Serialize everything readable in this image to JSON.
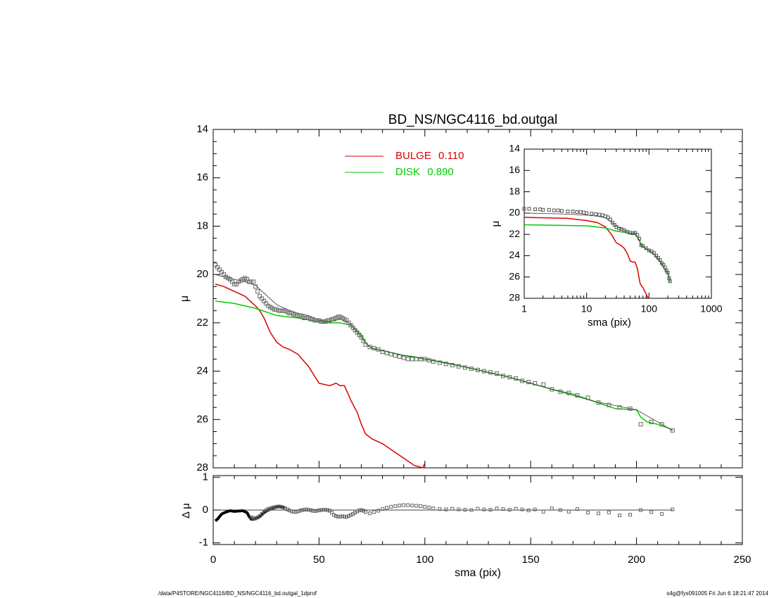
{
  "chart_data": [
    {
      "id": "main",
      "type": "line",
      "title": "BD_NS/NGC4116_bd.outgal",
      "xlabel": "",
      "ylabel": "μ",
      "xlim": [
        0,
        250
      ],
      "ylim": [
        28,
        14
      ],
      "yticks": [
        "14",
        "16",
        "18",
        "20",
        "22",
        "24",
        "26",
        "28"
      ],
      "legend": {
        "placement": "top",
        "entries": [
          {
            "label": "BULGE",
            "value": "0.110",
            "color": "#dd0000"
          },
          {
            "label": "DISK",
            "value": "0.890",
            "color": "#00cc00"
          }
        ]
      },
      "series": [
        {
          "name": "BULGE",
          "color": "#dd0000",
          "style": "line",
          "x": [
            1,
            5,
            10,
            15,
            20,
            22,
            24,
            25,
            27,
            30,
            33,
            36,
            40,
            45,
            50,
            55,
            58,
            60,
            62,
            65,
            68,
            70,
            72,
            75,
            80,
            85,
            90,
            95,
            99,
            100,
            101
          ],
          "y": [
            20.4,
            20.5,
            20.7,
            20.9,
            21.3,
            21.5,
            21.8,
            22.0,
            22.4,
            22.8,
            23.0,
            23.1,
            23.3,
            23.8,
            24.5,
            24.6,
            24.5,
            24.6,
            24.6,
            25.2,
            25.7,
            26.2,
            26.6,
            26.8,
            27.0,
            27.3,
            27.6,
            27.9,
            28.0,
            27.8,
            28.1
          ]
        },
        {
          "name": "DISK",
          "color": "#00cc00",
          "style": "line",
          "x": [
            1,
            10,
            20,
            30,
            40,
            50,
            55,
            60,
            65,
            70,
            72,
            75,
            80,
            90,
            95,
            100,
            110,
            120,
            130,
            140,
            150,
            160,
            170,
            180,
            190,
            200,
            202,
            205,
            210,
            215,
            217
          ],
          "y": [
            21.1,
            21.2,
            21.4,
            21.7,
            21.8,
            21.95,
            22.0,
            22.0,
            22.1,
            22.5,
            22.85,
            23.05,
            23.15,
            23.35,
            23.4,
            23.5,
            23.65,
            23.85,
            24.05,
            24.25,
            24.5,
            24.75,
            24.95,
            25.25,
            25.55,
            25.6,
            25.9,
            26.1,
            26.2,
            26.35,
            26.45
          ]
        },
        {
          "name": "",
          "color": "#333333",
          "style": "line",
          "x": [
            1,
            5,
            10,
            15,
            20,
            25,
            30,
            35,
            40,
            45,
            50,
            55,
            60,
            63,
            65,
            68,
            70,
            72,
            75,
            80,
            90,
            100,
            120,
            140,
            160,
            180,
            200,
            217
          ],
          "y": [
            20.0,
            20.1,
            20.2,
            20.3,
            20.45,
            20.85,
            21.25,
            21.45,
            21.6,
            21.7,
            21.9,
            21.95,
            21.85,
            21.95,
            22.05,
            22.4,
            22.6,
            22.85,
            23.05,
            23.15,
            23.35,
            23.5,
            23.85,
            24.25,
            24.75,
            25.25,
            25.6,
            26.45
          ]
        },
        {
          "name": "",
          "color": "#666666",
          "style": "markers",
          "x": [
            1,
            2,
            3,
            4,
            5,
            6,
            7,
            8,
            9,
            10,
            11,
            12,
            13,
            14,
            15,
            16,
            17,
            18,
            19,
            20,
            21,
            22,
            23,
            24,
            25,
            26,
            27,
            28,
            29,
            30,
            31,
            32,
            33,
            34,
            35,
            36,
            37,
            38,
            39,
            40,
            41,
            42,
            43,
            44,
            45,
            46,
            47,
            48,
            49,
            50,
            51,
            52,
            53,
            54,
            55,
            56,
            57,
            58,
            59,
            60,
            61,
            62,
            63,
            64,
            65,
            66,
            67,
            68,
            69,
            70,
            71,
            72,
            74,
            76,
            78,
            80,
            82,
            84,
            86,
            88,
            90,
            92,
            94,
            96,
            98,
            100,
            102,
            104,
            107,
            110,
            113,
            116,
            119,
            122,
            125,
            128,
            131,
            134,
            137,
            140,
            143,
            146,
            149,
            152,
            156,
            160,
            164,
            168,
            172,
            177,
            182,
            187,
            192,
            197,
            202,
            207,
            212,
            217
          ],
          "y": [
            19.6,
            19.7,
            19.8,
            19.9,
            20.0,
            20.1,
            20.15,
            20.2,
            20.3,
            20.4,
            20.4,
            20.3,
            20.25,
            20.2,
            20.15,
            20.2,
            20.3,
            20.3,
            20.3,
            20.5,
            20.7,
            20.9,
            21.0,
            21.1,
            21.2,
            21.3,
            21.35,
            21.4,
            21.45,
            21.45,
            21.5,
            21.5,
            21.5,
            21.5,
            21.55,
            21.6,
            21.6,
            21.65,
            21.7,
            21.7,
            21.7,
            21.75,
            21.8,
            21.8,
            21.8,
            21.85,
            21.85,
            21.9,
            21.9,
            21.9,
            21.95,
            21.95,
            21.95,
            21.9,
            21.9,
            21.85,
            21.85,
            21.8,
            21.75,
            21.75,
            21.8,
            21.85,
            21.9,
            22.0,
            22.1,
            22.2,
            22.3,
            22.4,
            22.5,
            22.6,
            22.75,
            22.9,
            23.0,
            23.05,
            23.1,
            23.2,
            23.25,
            23.3,
            23.35,
            23.4,
            23.45,
            23.5,
            23.5,
            23.5,
            23.5,
            23.5,
            23.55,
            23.6,
            23.65,
            23.7,
            23.75,
            23.8,
            23.85,
            23.9,
            23.95,
            24.0,
            24.05,
            24.1,
            24.2,
            24.25,
            24.3,
            24.4,
            24.45,
            24.5,
            24.55,
            24.75,
            24.85,
            24.9,
            25.0,
            25.1,
            25.3,
            25.4,
            25.5,
            25.55,
            26.2,
            26.1,
            26.2,
            26.45
          ]
        }
      ]
    },
    {
      "id": "residual",
      "type": "scatter",
      "xlabel": "sma (pix)",
      "ylabel": "Δ μ",
      "xlim": [
        0,
        250
      ],
      "ylim": [
        -1.05,
        1.05
      ],
      "xticks": [
        "0",
        "50",
        "100",
        "150",
        "200",
        "250"
      ],
      "yticks": [
        "1",
        "0",
        "-1"
      ],
      "series": [
        {
          "name": "",
          "color": "#000000",
          "style": "line-thick",
          "x": [
            1,
            2,
            3,
            4,
            6,
            8,
            10,
            12,
            14,
            16,
            17,
            18,
            20,
            22,
            24,
            26,
            28,
            30,
            32,
            34
          ],
          "y": [
            -0.33,
            -0.28,
            -0.2,
            -0.12,
            -0.06,
            -0.02,
            -0.04,
            -0.03,
            -0.02,
            -0.08,
            -0.2,
            -0.28,
            -0.27,
            -0.2,
            -0.08,
            0.0,
            0.05,
            0.09,
            0.11,
            0.07
          ]
        },
        {
          "name": "",
          "color": "#666666",
          "style": "markers",
          "x": [
            18,
            19,
            20,
            21,
            22,
            23,
            24,
            25,
            26,
            27,
            28,
            29,
            30,
            31,
            32,
            33,
            34,
            35,
            36,
            37,
            38,
            39,
            40,
            41,
            42,
            43,
            44,
            45,
            46,
            47,
            48,
            49,
            50,
            51,
            52,
            53,
            54,
            55,
            56,
            57,
            58,
            59,
            60,
            61,
            62,
            63,
            64,
            65,
            66,
            67,
            68,
            69,
            70,
            71,
            72,
            74,
            76,
            78,
            80,
            82,
            84,
            86,
            88,
            90,
            92,
            94,
            96,
            98,
            100,
            102,
            104,
            107,
            110,
            113,
            116,
            119,
            122,
            125,
            128,
            131,
            134,
            137,
            140,
            143,
            146,
            149,
            152,
            156,
            160,
            164,
            168,
            172,
            177,
            182,
            187,
            192,
            197,
            202,
            207,
            212,
            217
          ],
          "y": [
            -0.22,
            -0.24,
            -0.25,
            -0.22,
            -0.18,
            -0.12,
            -0.06,
            0.0,
            0.03,
            0.05,
            0.07,
            0.09,
            0.1,
            0.11,
            0.1,
            0.08,
            0.05,
            0.02,
            -0.01,
            -0.04,
            -0.05,
            -0.06,
            -0.04,
            -0.02,
            0.0,
            0.01,
            0.02,
            0.01,
            0.0,
            -0.02,
            -0.03,
            -0.02,
            -0.01,
            0.0,
            0.01,
            0.01,
            0.0,
            -0.02,
            -0.08,
            -0.15,
            -0.18,
            -0.2,
            -0.2,
            -0.19,
            -0.2,
            -0.21,
            -0.18,
            -0.15,
            -0.12,
            -0.08,
            -0.04,
            -0.01,
            0.0,
            -0.02,
            -0.06,
            -0.1,
            -0.06,
            -0.02,
            0.03,
            0.07,
            0.1,
            0.12,
            0.14,
            0.15,
            0.15,
            0.14,
            0.13,
            0.12,
            0.1,
            0.08,
            0.05,
            0.03,
            0.02,
            0.04,
            0.02,
            0.01,
            0.0,
            0.04,
            0.02,
            0.01,
            0.05,
            0.03,
            0.01,
            0.04,
            0.02,
            -0.01,
            0.02,
            -0.05,
            0.05,
            0.0,
            -0.05,
            0.03,
            -0.08,
            -0.1,
            -0.07,
            -0.16,
            -0.14,
            0.0,
            -0.06,
            -0.12,
            0.02
          ]
        }
      ]
    },
    {
      "id": "inset",
      "type": "line",
      "xlabel": "sma (pix)",
      "ylabel": "μ",
      "xscale": "log",
      "xlim": [
        1,
        1000
      ],
      "ylim": [
        28,
        14
      ],
      "xticks": [
        "1",
        "10",
        "100",
        "1000"
      ],
      "yticks": [
        "14",
        "16",
        "18",
        "20",
        "22",
        "24",
        "26",
        "28"
      ],
      "series": [
        {
          "name": "BULGE",
          "color": "#dd0000",
          "style": "line",
          "x": [
            1,
            5,
            10,
            15,
            20,
            25,
            30,
            35,
            40,
            45,
            50,
            55,
            60,
            65,
            70,
            72,
            75,
            80,
            85,
            90,
            95,
            99,
            100
          ],
          "y": [
            20.4,
            20.5,
            20.7,
            20.9,
            21.3,
            22.0,
            22.8,
            23.0,
            23.3,
            23.8,
            24.5,
            24.6,
            24.6,
            25.2,
            26.2,
            26.6,
            26.8,
            27.0,
            27.3,
            27.6,
            27.9,
            28.0,
            27.8
          ]
        },
        {
          "name": "DISK",
          "color": "#00cc00",
          "style": "line",
          "x": [
            1,
            10,
            20,
            30,
            40,
            50,
            60,
            70,
            75,
            90,
            100,
            120,
            150,
            180,
            200,
            217
          ],
          "y": [
            21.1,
            21.2,
            21.4,
            21.7,
            21.8,
            21.95,
            22.0,
            22.5,
            23.05,
            23.35,
            23.5,
            23.85,
            24.5,
            25.25,
            25.6,
            26.45
          ]
        },
        {
          "name": "",
          "color": "#333333",
          "style": "line",
          "x": [
            1,
            5,
            10,
            15,
            20,
            25,
            30,
            40,
            50,
            60,
            70,
            75,
            90,
            100,
            120,
            150,
            180,
            200,
            217
          ],
          "y": [
            20.0,
            20.1,
            20.2,
            20.3,
            20.45,
            20.85,
            21.25,
            21.6,
            21.9,
            21.85,
            22.6,
            23.05,
            23.35,
            23.5,
            23.85,
            24.5,
            25.25,
            25.6,
            26.45
          ]
        },
        {
          "name": "",
          "color": "#555555",
          "style": "markers",
          "x": [
            1,
            1.2,
            1.5,
            1.8,
            2,
            2.5,
            3,
            3.5,
            4,
            5,
            6,
            7,
            8,
            9,
            10,
            12,
            14,
            16,
            18,
            20,
            22,
            24,
            26,
            28,
            30,
            33,
            36,
            40,
            45,
            50,
            55,
            60,
            65,
            70,
            75,
            80,
            90,
            100,
            110,
            120,
            130,
            140,
            150,
            160,
            170,
            180,
            190,
            200,
            210,
            217
          ],
          "y": [
            19.6,
            19.6,
            19.65,
            19.65,
            19.7,
            19.7,
            19.75,
            19.75,
            19.8,
            19.85,
            19.85,
            19.9,
            19.9,
            19.95,
            20.0,
            20.05,
            20.1,
            20.15,
            20.2,
            20.3,
            20.4,
            20.6,
            20.9,
            21.1,
            21.3,
            21.45,
            21.5,
            21.6,
            21.75,
            21.85,
            21.9,
            21.85,
            22.05,
            22.4,
            23.0,
            23.1,
            23.3,
            23.5,
            23.6,
            23.75,
            24.0,
            24.2,
            24.4,
            24.7,
            24.85,
            25.1,
            25.4,
            25.6,
            26.1,
            26.4
          ]
        }
      ]
    }
  ],
  "footer": {
    "left": "/data/P4STORE/NGC4116/BD_NS/NGC4116_bd.outgal_1dprof",
    "right": "s4g@fys091005  Fri Jun  6 18:21:47 2014"
  }
}
